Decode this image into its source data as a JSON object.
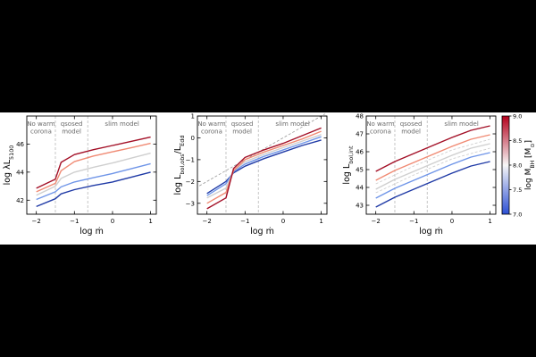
{
  "figure": {
    "background": "#ffffff",
    "page_background": "#000000"
  },
  "colorbar": {
    "label": "log M_BH [M_⊙]",
    "ticks": [
      "7.0",
      "7.5",
      "8.0",
      "8.5",
      "9.0"
    ],
    "tick_values": [
      7.0,
      7.5,
      8.0,
      8.5,
      9.0
    ],
    "colormap": [
      "#2c4fd4",
      "#f7f7f7",
      "#b3001c"
    ]
  },
  "chart_data": [
    {
      "type": "line",
      "xlabel": "log ṁ",
      "ylabel": "log λL_5100",
      "xlim": [
        -2.25,
        1.15
      ],
      "ylim": [
        41.0,
        48.0
      ],
      "xticks": [
        -2,
        -1,
        0,
        1
      ],
      "yticks": [
        42,
        44,
        46
      ],
      "regions": [
        {
          "label": [
            "No warm",
            "corona"
          ]
        },
        {
          "label": [
            "qsosed",
            "model"
          ]
        },
        {
          "label": [
            "slim model"
          ]
        }
      ],
      "region_boundaries": [
        -1.5,
        -0.65
      ],
      "series": [
        {
          "color": "#1f3aa6",
          "x": [
            -2,
            -1.5,
            -1.35,
            -1,
            -0.5,
            0,
            0.5,
            1
          ],
          "y": [
            41.55,
            42.1,
            42.45,
            42.75,
            43.05,
            43.3,
            43.65,
            44.0
          ]
        },
        {
          "color": "#6f95e8",
          "x": [
            -2,
            -1.5,
            -1.35,
            -1,
            -0.5,
            0,
            0.5,
            1
          ],
          "y": [
            42.05,
            42.6,
            42.95,
            43.3,
            43.6,
            43.9,
            44.25,
            44.6
          ]
        },
        {
          "color": "#cfcfcf",
          "x": [
            -2,
            -1.5,
            -1.35,
            -1,
            -0.5,
            0,
            0.5,
            1
          ],
          "y": [
            42.35,
            43.0,
            43.55,
            44.0,
            44.35,
            44.65,
            45.0,
            45.35
          ]
        },
        {
          "color": "#f08a73",
          "x": [
            -2,
            -1.5,
            -1.35,
            -1,
            -0.5,
            0,
            0.5,
            1
          ],
          "y": [
            42.6,
            43.2,
            44.1,
            44.75,
            45.15,
            45.45,
            45.75,
            46.05
          ]
        },
        {
          "color": "#a30f26",
          "x": [
            -2,
            -1.5,
            -1.35,
            -1,
            -0.5,
            0,
            0.5,
            1
          ],
          "y": [
            42.85,
            43.5,
            44.7,
            45.25,
            45.6,
            45.9,
            46.2,
            46.5
          ]
        }
      ]
    },
    {
      "type": "line",
      "xlabel": "log ṁ",
      "ylabel": "log L_bol,obs/L_Edd",
      "xlim": [
        -2.25,
        1.15
      ],
      "ylim": [
        -3.5,
        1.0
      ],
      "xticks": [
        -2,
        -1,
        0,
        1
      ],
      "yticks": [
        -3,
        -2,
        -1,
        0,
        1
      ],
      "regions": [
        {
          "label": [
            "No warm",
            "corona"
          ]
        },
        {
          "label": [
            "qsosed",
            "model"
          ]
        },
        {
          "label": [
            "slim model"
          ]
        }
      ],
      "region_boundaries": [
        -1.5,
        -0.65
      ],
      "reference_line": {
        "x": [
          -2.2,
          1.1
        ],
        "y": [
          -2.2,
          1.1
        ]
      },
      "series": [
        {
          "color": "#1f3aa6",
          "x": [
            -2,
            -1.5,
            -1.3,
            -1,
            -0.5,
            0,
            0.5,
            1
          ],
          "y": [
            -2.55,
            -2.0,
            -1.6,
            -1.3,
            -0.95,
            -0.65,
            -0.35,
            -0.1
          ]
        },
        {
          "color": "#6f95e8",
          "x": [
            -2,
            -1.5,
            -1.3,
            -1,
            -0.5,
            0,
            0.5,
            1
          ],
          "y": [
            -2.65,
            -2.1,
            -1.55,
            -1.2,
            -0.85,
            -0.55,
            -0.25,
            0.05
          ]
        },
        {
          "color": "#cfcfcf",
          "x": [
            -2,
            -1.5,
            -1.3,
            -1,
            -0.5,
            0,
            0.5,
            1
          ],
          "y": [
            -2.75,
            -2.3,
            -1.5,
            -1.1,
            -0.75,
            -0.45,
            -0.15,
            0.15
          ]
        },
        {
          "color": "#f08a73",
          "x": [
            -2,
            -1.5,
            -1.3,
            -1,
            -0.5,
            0,
            0.5,
            1
          ],
          "y": [
            -3.0,
            -2.5,
            -1.5,
            -1.0,
            -0.65,
            -0.35,
            -0.05,
            0.3
          ]
        },
        {
          "color": "#a30f26",
          "x": [
            -2,
            -1.5,
            -1.3,
            -1,
            -0.5,
            0,
            0.5,
            1
          ],
          "y": [
            -3.25,
            -2.75,
            -1.4,
            -0.9,
            -0.55,
            -0.25,
            0.1,
            0.45
          ]
        }
      ]
    },
    {
      "type": "line",
      "xlabel": "log ṁ",
      "ylabel": "log L_bol,int",
      "xlim": [
        -2.25,
        1.15
      ],
      "ylim": [
        42.5,
        48.0
      ],
      "xticks": [
        -2,
        -1,
        0,
        1
      ],
      "yticks": [
        43,
        44,
        45,
        46,
        47,
        48
      ],
      "regions": [
        {
          "label": [
            "No warm",
            "corona"
          ]
        },
        {
          "label": [
            "qsosed",
            "model"
          ]
        },
        {
          "label": [
            "slim model"
          ]
        }
      ],
      "region_boundaries": [
        -1.5,
        -0.65
      ],
      "series": [
        {
          "color": "#1f3aa6",
          "x": [
            -2,
            -1.5,
            -1,
            -0.5,
            0,
            0.5,
            1
          ],
          "y": [
            42.9,
            43.45,
            43.9,
            44.35,
            44.8,
            45.2,
            45.45
          ]
        },
        {
          "color": "#6f95e8",
          "x": [
            -2,
            -1.5,
            -1,
            -0.5,
            0,
            0.5,
            1
          ],
          "y": [
            43.4,
            43.95,
            44.4,
            44.85,
            45.3,
            45.7,
            45.95
          ]
        },
        {
          "color": "#cfcfcf",
          "x": [
            -2,
            -1.5,
            -1,
            -0.5,
            0,
            0.5,
            1
          ],
          "y": [
            43.9,
            44.45,
            44.9,
            45.35,
            45.8,
            46.2,
            46.45
          ]
        },
        {
          "color": "#f08a73",
          "x": [
            -2,
            -1.5,
            -1,
            -0.5,
            0,
            0.5,
            1
          ],
          "y": [
            44.4,
            44.95,
            45.4,
            45.85,
            46.3,
            46.7,
            46.95
          ]
        },
        {
          "color": "#a30f26",
          "x": [
            -2,
            -1.5,
            -1,
            -0.5,
            0,
            0.5,
            1
          ],
          "y": [
            44.9,
            45.45,
            45.9,
            46.35,
            46.8,
            47.2,
            47.45
          ]
        }
      ],
      "dashed_series": [
        {
          "color": "#cfcfcf",
          "x": [
            -2,
            -1,
            0,
            1
          ],
          "y": [
            43.7,
            44.7,
            45.6,
            46.2
          ]
        },
        {
          "color": "#cfcfcf",
          "x": [
            -2,
            -1,
            0,
            1
          ],
          "y": [
            44.2,
            45.2,
            46.1,
            46.7
          ]
        }
      ]
    }
  ]
}
